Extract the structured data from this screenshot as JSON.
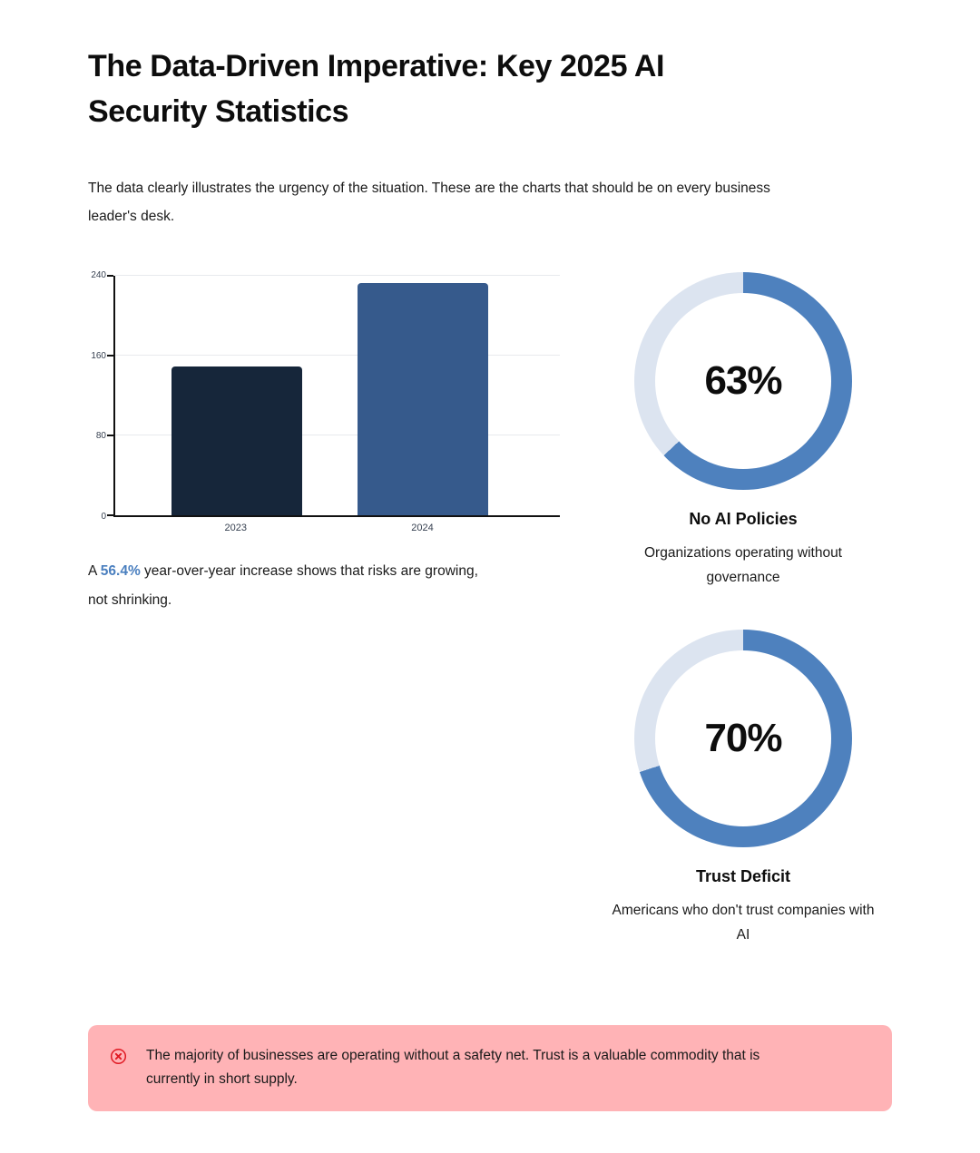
{
  "page": {
    "title": "The Data-Driven Imperative: Key 2025 AI\nSecurity Statistics",
    "intro": "The data clearly illustrates the urgency of the situation. These are the charts that should be on every business\nleader's desk."
  },
  "colors": {
    "title": "#0d0d0d",
    "text": "#1a1a1a",
    "axis": "#111111",
    "grid": "#e8eaed",
    "accent_blue": "#4a7fbf",
    "alert_bg": "#ffb3b6",
    "alert_icon": "#e01b24"
  },
  "chart_data": [
    {
      "type": "bar",
      "categories": [
        "2023",
        "2024"
      ],
      "values": [
        149,
        233
      ],
      "bar_colors": [
        "#16263a",
        "#365a8c"
      ],
      "title": "",
      "xlabel": "",
      "ylabel": "",
      "ylim": [
        0,
        240
      ],
      "yticks": [
        0,
        80,
        160,
        240
      ],
      "grid": true,
      "legend": false,
      "layout": {
        "bar_centers_pct": [
          27.4,
          69.2
        ],
        "bar_width_pct": 29.3
      }
    },
    {
      "type": "donut",
      "value_pct": 63,
      "center_label": "63%",
      "fill_color": "#4e81be",
      "track_color": "#dce4f0",
      "start_angle_deg": 0,
      "title": "No AI Policies",
      "caption": "Organizations operating without\ngovernance"
    },
    {
      "type": "donut",
      "value_pct": 70,
      "center_label": "70%",
      "fill_color": "#4e81be",
      "track_color": "#dce4f0",
      "start_angle_deg": 0,
      "title": "Trust Deficit",
      "caption": "Americans who don't trust companies with\nAI"
    }
  ],
  "bar_caption": {
    "prefix": "A ",
    "highlight": "56.4%",
    "suffix": " year-over-year increase shows that risks are growing,\nnot shrinking."
  },
  "alert": {
    "icon": "circled-x-icon",
    "text": "The majority of businesses are operating without a safety net. Trust is a valuable commodity that is\ncurrently in short supply."
  }
}
